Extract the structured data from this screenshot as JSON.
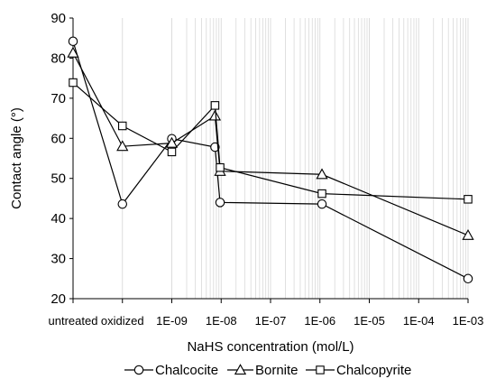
{
  "chart_data": {
    "type": "line",
    "x_categories": [
      "untreated",
      "oxidized",
      "1E-09",
      "1E-08",
      "1E-07",
      "1E-06",
      "1E-05",
      "1E-04",
      "1E-03"
    ],
    "xlabel": "NaHS concentration (mol/L)",
    "ylabel": "Contact angle (°)",
    "ylim": [
      20,
      90
    ],
    "y_ticks": [
      20,
      30,
      40,
      50,
      60,
      70,
      80,
      90
    ],
    "grid": "vertical minor gridlines",
    "legend_position": "bottom",
    "series": [
      {
        "name": "Chalcocite",
        "marker": "circle",
        "points": [
          {
            "x": "untreated",
            "y": 84.2
          },
          {
            "x": "oxidized",
            "y": 43.6
          },
          {
            "x": "1E-09",
            "y": 59.9
          },
          {
            "x": "7.5E-09",
            "y": 57.8
          },
          {
            "x": "9.5E-09",
            "y": 44.0
          },
          {
            "x": "1.1E-06",
            "y": 43.6
          },
          {
            "x": "1E-03",
            "y": 25.0
          }
        ]
      },
      {
        "name": "Bornite",
        "marker": "triangle",
        "points": [
          {
            "x": "untreated",
            "y": 81.3
          },
          {
            "x": "oxidized",
            "y": 58.0
          },
          {
            "x": "1E-09",
            "y": 58.8
          },
          {
            "x": "7.5E-09",
            "y": 65.6
          },
          {
            "x": "9.5E-09",
            "y": 51.8
          },
          {
            "x": "1.1E-06",
            "y": 51.0
          },
          {
            "x": "1E-03",
            "y": 35.8
          }
        ]
      },
      {
        "name": "Chalcopyrite",
        "marker": "square",
        "points": [
          {
            "x": "untreated",
            "y": 73.9
          },
          {
            "x": "oxidized",
            "y": 63.1
          },
          {
            "x": "1E-09",
            "y": 56.6
          },
          {
            "x": "7.5E-09",
            "y": 68.2
          },
          {
            "x": "9.5E-09",
            "y": 52.7
          },
          {
            "x": "1.1E-06",
            "y": 46.2
          },
          {
            "x": "1E-03",
            "y": 44.8
          }
        ]
      }
    ],
    "colors": {
      "line": "#000000",
      "marker_fill": "#ffffff",
      "grid": "#d9d9d9",
      "axis": "#000000"
    }
  }
}
